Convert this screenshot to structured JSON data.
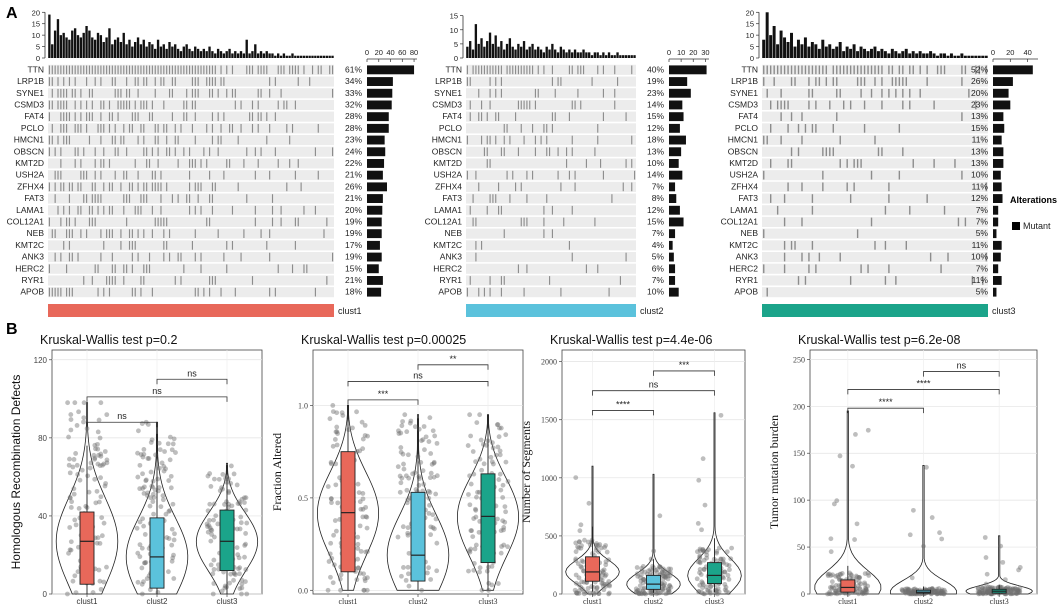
{
  "panel_labels": {
    "a": "A",
    "b": "B"
  },
  "legend": {
    "title": "Alterations",
    "item": "Mutant",
    "color": "#000000"
  },
  "colors": {
    "clust1": "#E8685A",
    "clust2": "#5BC2DC",
    "clust3": "#1BA48A",
    "mutation": "#8c8c8c",
    "cell_bg": "#ececec",
    "bar": "#111111",
    "dot": "#6e6e6e"
  },
  "chart_data": [
    {
      "type": "bar",
      "title": "Oncoplot clust1",
      "cluster_label": "clust1",
      "top_ticks": [
        0,
        5,
        10,
        15,
        20
      ],
      "top_ylim": [
        0,
        21
      ],
      "side_ticks": [
        0,
        20,
        40,
        60,
        80
      ],
      "side_xlim": [
        0,
        85
      ],
      "top_bars": [
        19,
        6,
        12,
        17,
        10,
        11,
        9,
        8,
        12,
        13,
        10,
        9,
        11,
        14,
        12,
        9,
        8,
        11,
        10,
        7,
        9,
        13,
        6,
        8,
        9,
        7,
        11,
        6,
        8,
        5,
        7,
        9,
        6,
        8,
        5,
        7,
        6,
        4,
        8,
        5,
        6,
        4,
        7,
        5,
        6,
        4,
        3,
        5,
        6,
        4,
        3,
        5,
        4,
        3,
        4,
        3,
        5,
        3,
        2,
        4,
        3,
        2,
        3,
        4,
        2,
        3,
        2,
        3,
        2,
        8,
        2,
        3,
        6,
        2,
        3,
        2,
        3,
        2,
        2,
        1,
        2,
        1,
        2,
        1,
        1,
        2,
        1,
        1,
        1,
        1,
        1,
        1,
        1,
        1,
        1,
        1,
        1,
        1,
        1,
        1
      ],
      "genes": [
        "TTN",
        "LRP1B",
        "SYNE1",
        "CSMD3",
        "FAT4",
        "PCLO",
        "HMCN1",
        "OBSCN",
        "KMT2D",
        "USH2A",
        "ZFHX4",
        "FAT3",
        "LAMA1",
        "COL12A1",
        "NEB",
        "KMT2C",
        "ANK3",
        "HERC2",
        "RYR1",
        "APOB"
      ],
      "percents": [
        "61%",
        "34%",
        "33%",
        "32%",
        "28%",
        "28%",
        "23%",
        "24%",
        "22%",
        "21%",
        "26%",
        "21%",
        "20%",
        "19%",
        "19%",
        "17%",
        "19%",
        "15%",
        "21%",
        "18%"
      ],
      "counts": [
        80,
        44,
        43,
        42,
        37,
        37,
        30,
        31,
        29,
        27,
        34,
        27,
        26,
        25,
        25,
        22,
        25,
        20,
        27,
        24
      ]
    },
    {
      "type": "bar",
      "title": "Oncoplot clust2",
      "cluster_label": "clust2",
      "top_ticks": [
        0,
        5,
        10,
        15
      ],
      "top_ylim": [
        0,
        17
      ],
      "side_ticks": [
        0,
        10,
        20,
        30
      ],
      "side_xlim": [
        0,
        33
      ],
      "top_bars": [
        4,
        6,
        3,
        12,
        5,
        7,
        4,
        6,
        9,
        5,
        8,
        4,
        6,
        3,
        5,
        7,
        4,
        3,
        5,
        4,
        6,
        3,
        4,
        5,
        3,
        4,
        3,
        2,
        4,
        3,
        5,
        3,
        2,
        4,
        3,
        2,
        3,
        2,
        3,
        2,
        2,
        3,
        2,
        2,
        1,
        2,
        2,
        1,
        2,
        1,
        2,
        1,
        1,
        2,
        1,
        1,
        1,
        1,
        1,
        1
      ],
      "genes": [
        "TTN",
        "LRP1B",
        "SYNE1",
        "CSMD3",
        "FAT4",
        "PCLO",
        "HMCN1",
        "OBSCN",
        "KMT2D",
        "USH2A",
        "ZFHX4",
        "FAT3",
        "LAMA1",
        "COL12A1",
        "NEB",
        "KMT2C",
        "ANK3",
        "HERC2",
        "RYR1",
        "APOB"
      ],
      "percents": [
        "40%",
        "19%",
        "23%",
        "14%",
        "15%",
        "12%",
        "18%",
        "13%",
        "10%",
        "14%",
        "7%",
        "8%",
        "12%",
        "15%",
        "7%",
        "4%",
        "5%",
        "6%",
        "7%",
        "10%"
      ],
      "counts": [
        31,
        15,
        18,
        11,
        12,
        9,
        14,
        10,
        8,
        11,
        5,
        6,
        9,
        12,
        5,
        3,
        4,
        5,
        5,
        8
      ]
    },
    {
      "type": "bar",
      "title": "Oncoplot clust3",
      "cluster_label": "clust3",
      "top_ticks": [
        0,
        5,
        10,
        15,
        20
      ],
      "top_ylim": [
        0,
        21
      ],
      "side_ticks": [
        0,
        20,
        40
      ],
      "side_xlim": [
        0,
        52
      ],
      "top_bars": [
        8,
        20,
        10,
        14,
        6,
        12,
        9,
        7,
        11,
        5,
        8,
        6,
        9,
        5,
        7,
        6,
        4,
        8,
        5,
        6,
        4,
        5,
        7,
        3,
        5,
        4,
        6,
        3,
        5,
        4,
        3,
        4,
        5,
        3,
        4,
        3,
        2,
        4,
        3,
        2,
        3,
        4,
        2,
        3,
        2,
        3,
        2,
        2,
        3,
        2,
        1,
        2,
        2,
        1,
        2,
        1,
        1,
        2,
        1,
        1,
        1,
        1,
        1,
        1,
        1
      ],
      "genes": [
        "TTN",
        "LRP1B",
        "SYNE1",
        "CSMD3",
        "FAT4",
        "PCLO",
        "HMCN1",
        "OBSCN",
        "KMT2D",
        "USH2A",
        "ZFHX4",
        "FAT3",
        "LAMA1",
        "COL12A1",
        "NEB",
        "KMT2C",
        "ANK3",
        "HERC2",
        "RYR1",
        "APOB"
      ],
      "percents": [
        "52%",
        "26%",
        "20%",
        "23%",
        "13%",
        "15%",
        "11%",
        "13%",
        "13%",
        "10%",
        "11%",
        "12%",
        "7%",
        "7%",
        "5%",
        "11%",
        "10%",
        "7%",
        "11%",
        "5%"
      ],
      "counts": [
        46,
        23,
        18,
        20,
        12,
        13,
        10,
        12,
        12,
        9,
        10,
        11,
        6,
        6,
        4,
        10,
        9,
        6,
        10,
        4
      ]
    },
    {
      "type": "violin",
      "title": "Kruskal-Wallis test p=0.2",
      "ylabel": "Homologous Recombination Defects",
      "categories": [
        "clust1",
        "clust2",
        "clust3"
      ],
      "ylim": [
        0,
        125
      ],
      "yticks": [
        0,
        40,
        80,
        120
      ],
      "box": [
        {
          "q1": 5,
          "median": 27,
          "q3": 42,
          "whisker_low": 0,
          "whisker_high": 76
        },
        {
          "q1": 3,
          "median": 19,
          "q3": 39,
          "whisker_low": 0,
          "whisker_high": 82
        },
        {
          "q1": 12,
          "median": 27,
          "q3": 43,
          "whisker_low": 0,
          "whisker_high": 66
        }
      ],
      "ranges": [
        [
          0,
          98
        ],
        [
          0,
          88
        ],
        [
          0,
          67
        ]
      ],
      "significance": [
        {
          "from": 1,
          "to": 2,
          "label": "ns",
          "y": 110
        },
        {
          "from": 0,
          "to": 2,
          "label": "ns",
          "y": 101
        },
        {
          "from": 0,
          "to": 1,
          "label": "ns",
          "y": 88
        }
      ]
    },
    {
      "type": "violin",
      "title": "Kruskal-Wallis test p=0.00025",
      "ylabel": "Fraction Altered",
      "categories": [
        "clust1",
        "clust2",
        "clust3"
      ],
      "ylim": [
        -0.02,
        1.3
      ],
      "yticks": [
        0.0,
        0.5,
        1.0
      ],
      "box": [
        {
          "q1": 0.1,
          "median": 0.42,
          "q3": 0.75,
          "whisker_low": 0.0,
          "whisker_high": 1.0
        },
        {
          "q1": 0.05,
          "median": 0.19,
          "q3": 0.53,
          "whisker_low": 0.0,
          "whisker_high": 0.93
        },
        {
          "q1": 0.15,
          "median": 0.4,
          "q3": 0.63,
          "whisker_low": 0.0,
          "whisker_high": 0.95
        }
      ],
      "ranges": [
        [
          0,
          1.0
        ],
        [
          0,
          0.95
        ],
        [
          0,
          0.95
        ]
      ],
      "significance": [
        {
          "from": 1,
          "to": 2,
          "label": "**",
          "y": 1.22
        },
        {
          "from": 0,
          "to": 2,
          "label": "ns",
          "y": 1.13
        },
        {
          "from": 0,
          "to": 1,
          "label": "***",
          "y": 1.03
        }
      ]
    },
    {
      "type": "violin",
      "title": "Kruskal-Wallis test p=4.4e-06",
      "ylabel": "Number of Segments",
      "categories": [
        "clust1",
        "clust2",
        "clust3"
      ],
      "ylim": [
        0,
        2100
      ],
      "yticks": [
        0,
        500,
        1000,
        1500,
        2000
      ],
      "box": [
        {
          "q1": 110,
          "median": 190,
          "q3": 320,
          "whisker_low": 20,
          "whisker_high": 580
        },
        {
          "q1": 40,
          "median": 85,
          "q3": 160,
          "whisker_low": 10,
          "whisker_high": 300
        },
        {
          "q1": 90,
          "median": 160,
          "q3": 270,
          "whisker_low": 15,
          "whisker_high": 480
        }
      ],
      "ranges": [
        [
          0,
          1100
        ],
        [
          0,
          1030
        ],
        [
          0,
          1560
        ]
      ],
      "significance": [
        {
          "from": 1,
          "to": 2,
          "label": "***",
          "y": 1920
        },
        {
          "from": 0,
          "to": 2,
          "label": "ns",
          "y": 1750
        },
        {
          "from": 0,
          "to": 1,
          "label": "****",
          "y": 1580
        }
      ]
    },
    {
      "type": "violin",
      "title": "Kruskal-Wallis test p=6.2e-08",
      "ylabel": "Tumor mutation burden",
      "categories": [
        "clust1",
        "clust2",
        "clust3"
      ],
      "ylim": [
        0,
        260
      ],
      "yticks": [
        0,
        50,
        100,
        150,
        200,
        250
      ],
      "box": [
        {
          "q1": 2,
          "median": 7,
          "q3": 15,
          "whisker_low": 0,
          "whisker_high": 30
        },
        {
          "q1": 1,
          "median": 2,
          "q3": 4,
          "whisker_low": 0,
          "whisker_high": 8
        },
        {
          "q1": 1,
          "median": 3,
          "q3": 5,
          "whisker_low": 0,
          "whisker_high": 10
        }
      ],
      "ranges": [
        [
          0,
          195
        ],
        [
          0,
          137
        ],
        [
          0,
          62
        ]
      ],
      "significance": [
        {
          "from": 1,
          "to": 2,
          "label": "ns",
          "y": 237
        },
        {
          "from": 0,
          "to": 2,
          "label": "****",
          "y": 218
        },
        {
          "from": 0,
          "to": 1,
          "label": "****",
          "y": 198
        }
      ]
    }
  ]
}
